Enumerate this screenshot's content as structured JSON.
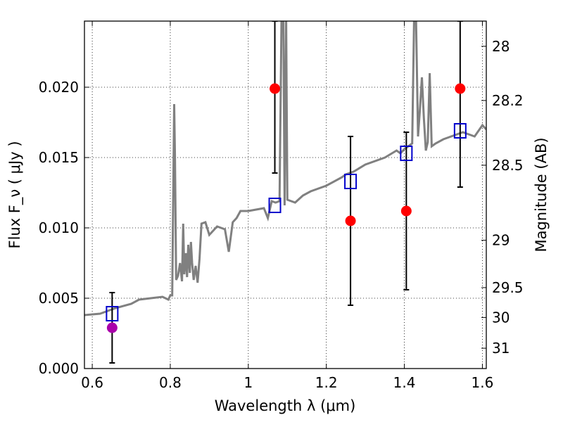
{
  "chart_data": {
    "type": "scatter",
    "xlabel": "Wavelength  λ (μm)",
    "ylabel": "Flux  F_ν  ( μJy )",
    "y2label": "Magnitude (AB)",
    "xlim": [
      0.58,
      1.61
    ],
    "ylim": [
      0.0,
      0.0247
    ],
    "grid": true,
    "x_ticks": [
      0.6,
      0.8,
      1.0,
      1.2,
      1.4,
      1.6
    ],
    "x_tick_labels": [
      "0.6",
      "0.8",
      "1",
      "1.2",
      "1.4",
      "1.6"
    ],
    "y_ticks": [
      0.0,
      0.005,
      0.01,
      0.015,
      0.02
    ],
    "y_tick_labels": [
      "0.000",
      "0.005",
      "0.010",
      "0.015",
      "0.020"
    ],
    "mag_ticks": [
      {
        "value": 28,
        "label": "28"
      },
      {
        "value": 28.2,
        "label": "28.2"
      },
      {
        "value": 28.5,
        "label": "28.5"
      },
      {
        "value": 29,
        "label": "29"
      },
      {
        "value": 29.5,
        "label": "29.5"
      },
      {
        "value": 30,
        "label": "30"
      },
      {
        "value": 31,
        "label": "31"
      }
    ],
    "colors": {
      "spectrum": "#808080",
      "model_box": "#0000cc",
      "observed": "#ff0000",
      "observed_first": "#aa00aa",
      "errorbar": "#000000"
    },
    "model_spectrum": {
      "x": [
        0.58,
        0.62,
        0.65,
        0.66,
        0.7,
        0.72,
        0.75,
        0.78,
        0.795,
        0.8,
        0.805,
        0.81,
        0.812,
        0.815,
        0.82,
        0.825,
        0.83,
        0.833,
        0.836,
        0.84,
        0.843,
        0.846,
        0.85,
        0.853,
        0.856,
        0.86,
        0.865,
        0.87,
        0.875,
        0.88,
        0.89,
        0.9,
        0.92,
        0.94,
        0.95,
        0.96,
        0.97,
        0.98,
        1.0,
        1.02,
        1.04,
        1.05,
        1.06,
        1.07,
        1.08,
        1.085,
        1.09,
        1.093,
        1.097,
        1.1,
        1.12,
        1.14,
        1.16,
        1.2,
        1.24,
        1.25,
        1.27,
        1.3,
        1.35,
        1.38,
        1.39,
        1.4,
        1.41,
        1.42,
        1.425,
        1.43,
        1.435,
        1.44,
        1.445,
        1.45,
        1.455,
        1.46,
        1.465,
        1.47,
        1.48,
        1.5,
        1.55,
        1.58,
        1.6,
        1.61
      ],
      "y": [
        0.0038,
        0.0039,
        0.0042,
        0.0043,
        0.0046,
        0.0049,
        0.005,
        0.0051,
        0.0049,
        0.0052,
        0.0052,
        0.0188,
        0.0151,
        0.0063,
        0.0066,
        0.0075,
        0.0062,
        0.0103,
        0.0067,
        0.0082,
        0.0065,
        0.0088,
        0.0068,
        0.009,
        0.0075,
        0.0063,
        0.0073,
        0.0061,
        0.0078,
        0.0103,
        0.0104,
        0.0095,
        0.0101,
        0.0099,
        0.0083,
        0.0104,
        0.0107,
        0.0112,
        0.0112,
        0.0113,
        0.0114,
        0.0107,
        0.0119,
        0.0118,
        0.0119,
        0.0248,
        0.0248,
        0.0116,
        0.0248,
        0.012,
        0.0118,
        0.0123,
        0.0126,
        0.013,
        0.0136,
        0.0138,
        0.014,
        0.0145,
        0.015,
        0.0155,
        0.0153,
        0.0156,
        0.0158,
        0.016,
        0.0248,
        0.0248,
        0.0165,
        0.0185,
        0.0207,
        0.0178,
        0.0155,
        0.0161,
        0.021,
        0.0158,
        0.016,
        0.0163,
        0.0168,
        0.0165,
        0.0173,
        0.017
      ]
    },
    "model_photometry": [
      {
        "x": 0.651,
        "y": 0.0039
      },
      {
        "x": 1.068,
        "y": 0.0116
      },
      {
        "x": 1.262,
        "y": 0.0133
      },
      {
        "x": 1.405,
        "y": 0.0153
      },
      {
        "x": 1.543,
        "y": 0.0169
      }
    ],
    "observed": [
      {
        "x": 0.651,
        "y": 0.0029,
        "err_low": 0.0004,
        "err_high": 0.0054,
        "marker": "observed_first"
      },
      {
        "x": 1.068,
        "y": 0.0199,
        "err_low": 0.0139,
        "err_high": 0.0247,
        "marker": "observed"
      },
      {
        "x": 1.262,
        "y": 0.0105,
        "err_low": 0.0045,
        "err_high": 0.0165,
        "marker": "observed"
      },
      {
        "x": 1.405,
        "y": 0.0112,
        "err_low": 0.0056,
        "err_high": 0.0168,
        "marker": "observed"
      },
      {
        "x": 1.543,
        "y": 0.0199,
        "err_low": 0.0129,
        "err_high": 0.0247,
        "marker": "observed"
      }
    ]
  }
}
